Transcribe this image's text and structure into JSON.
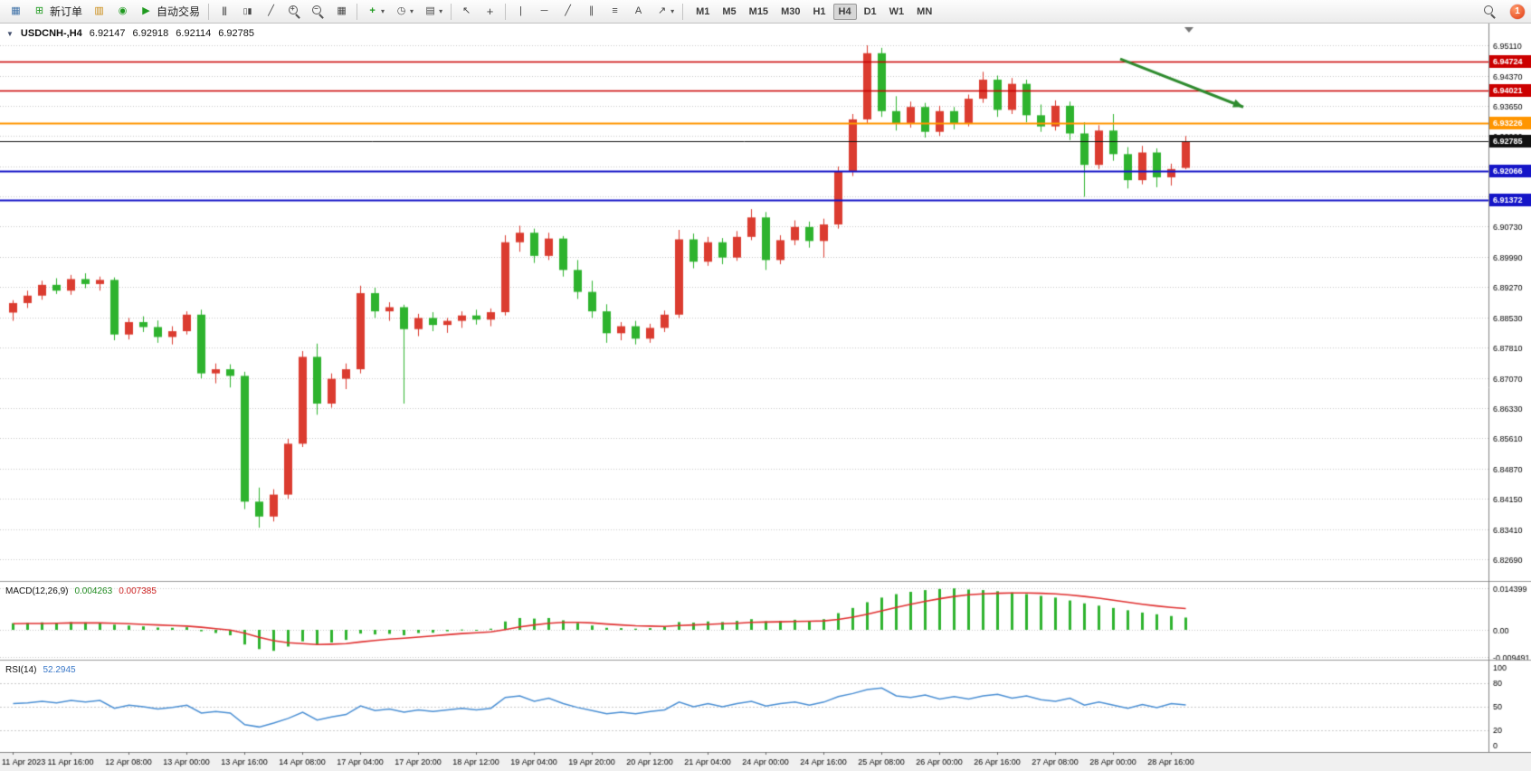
{
  "toolbar": {
    "new_order_label": "新订单",
    "auto_trading_label": "自动交易",
    "timeframes": [
      "M1",
      "M5",
      "M15",
      "M30",
      "H1",
      "H4",
      "D1",
      "W1",
      "MN"
    ],
    "active_timeframe": "H4",
    "notification_count": "1",
    "icon_names": [
      "new-chart",
      "new-order",
      "market-watch",
      "community",
      "auto-trading-play",
      "bar-chart-type",
      "candlestick-chart-type",
      "line-chart-type",
      "zoom-in",
      "zoom-out",
      "tile-windows",
      "indicators",
      "periods-clock",
      "templates",
      "cursor",
      "crosshair",
      "vertical-line",
      "horizontal-line",
      "trendline",
      "equidistant-channel",
      "fibonacci",
      "text",
      "arrows",
      "search",
      "notification-badge"
    ]
  },
  "chart": {
    "symbol": "USDCNH-,H4",
    "open": "6.92147",
    "high": "6.92918",
    "low": "6.92114",
    "close": "6.92785",
    "hlines": [
      {
        "price": 6.94724,
        "label": "6.94724",
        "color": "#cc0000",
        "width": 1.6
      },
      {
        "price": 6.94021,
        "label": "6.94021",
        "color": "#cc0000",
        "width": 1.6
      },
      {
        "price": 6.93226,
        "label": "6.93226",
        "color": "#ff9500",
        "width": 2
      },
      {
        "price": 6.92785,
        "label": "6.92785",
        "color": "#111111",
        "width": 1
      },
      {
        "price": 6.92066,
        "label": "6.92066",
        "color": "#1515c8",
        "width": 1.8
      },
      {
        "price": 6.91372,
        "label": "6.91372",
        "color": "#1515c8",
        "width": 1.8
      }
    ],
    "arrow": {
      "from_index": 76.5,
      "from_price": 6.9478,
      "to_index": 85,
      "to_price": 6.9362,
      "color": "#2e8b2e"
    }
  },
  "chart_data": [
    {
      "type": "candlestick",
      "symbol": "USDCNH-",
      "timeframe": "H4",
      "label_every_n_candles": 4,
      "ylim": [
        6.8225,
        6.9555
      ],
      "price_axis_ticks": [
        "6.95110",
        "6.94370",
        "6.93650",
        "6.92920",
        "6.92190",
        "6.91460",
        "6.90730",
        "6.89990",
        "6.89270",
        "6.88530",
        "6.87810",
        "6.87070",
        "6.86330",
        "6.85610",
        "6.84870",
        "6.84150",
        "6.83410",
        "6.82690"
      ],
      "x_labels": [
        "11 Apr 2023",
        "11 Apr 16:00",
        "12 Apr 08:00",
        "13 Apr 00:00",
        "13 Apr 16:00",
        "14 Apr 08:00",
        "17 Apr 04:00",
        "17 Apr 20:00",
        "18 Apr 12:00",
        "19 Apr 04:00",
        "19 Apr 20:00",
        "20 Apr 12:00",
        "21 Apr 04:00",
        "24 Apr 00:00",
        "24 Apr 16:00",
        "25 Apr 08:00",
        "26 Apr 00:00",
        "26 Apr 16:00",
        "27 Apr 08:00",
        "28 Apr 00:00",
        "28 Apr 16:00"
      ],
      "candles": [
        [
          6.8865,
          6.8895,
          6.8845,
          6.8888
        ],
        [
          6.8888,
          6.8918,
          6.8876,
          6.8906
        ],
        [
          6.8906,
          6.8942,
          6.8896,
          6.8932
        ],
        [
          6.8932,
          6.8948,
          6.891,
          6.8918
        ],
        [
          6.8918,
          6.8956,
          6.8908,
          6.8946
        ],
        [
          6.8946,
          6.896,
          6.8924,
          6.8934
        ],
        [
          6.8934,
          6.8952,
          6.8918,
          6.8944
        ],
        [
          6.8944,
          6.895,
          6.8798,
          6.8812
        ],
        [
          6.8812,
          6.8852,
          6.88,
          6.8842
        ],
        [
          6.8842,
          6.8856,
          6.8818,
          6.883
        ],
        [
          6.883,
          6.8846,
          6.8792,
          6.8806
        ],
        [
          6.8806,
          6.8832,
          6.8788,
          6.882
        ],
        [
          6.882,
          6.8868,
          6.8812,
          6.886
        ],
        [
          6.886,
          6.8872,
          6.8706,
          6.8718
        ],
        [
          6.8718,
          6.8742,
          6.8694,
          6.8728
        ],
        [
          6.8728,
          6.874,
          6.8684,
          6.8712
        ],
        [
          6.8712,
          6.8722,
          6.839,
          6.8408
        ],
        [
          6.8408,
          6.8442,
          6.8345,
          6.8372
        ],
        [
          6.8372,
          6.8438,
          6.836,
          6.8425
        ],
        [
          6.8425,
          6.856,
          6.8415,
          6.8548
        ],
        [
          6.8548,
          6.8772,
          6.854,
          6.8758
        ],
        [
          6.8758,
          6.879,
          6.8618,
          6.8645
        ],
        [
          6.8645,
          6.8718,
          6.8635,
          6.8705
        ],
        [
          6.8705,
          6.8742,
          6.868,
          6.8728
        ],
        [
          6.8728,
          6.893,
          6.8718,
          6.8912
        ],
        [
          6.8912,
          6.8925,
          6.8852,
          6.8868
        ],
        [
          6.8868,
          6.889,
          6.8845,
          6.8878
        ],
        [
          6.8878,
          6.8884,
          6.8645,
          6.8825
        ],
        [
          6.8825,
          6.8862,
          6.8808,
          6.8852
        ],
        [
          6.8852,
          6.8866,
          6.882,
          6.8835
        ],
        [
          6.8835,
          6.8852,
          6.8816,
          6.8845
        ],
        [
          6.8845,
          6.8868,
          6.8828,
          6.8858
        ],
        [
          6.8858,
          6.8872,
          6.8836,
          6.8848
        ],
        [
          6.8848,
          6.8875,
          6.8832,
          6.8866
        ],
        [
          6.8866,
          6.9052,
          6.8858,
          6.9035
        ],
        [
          6.9035,
          6.9075,
          6.9012,
          6.9058
        ],
        [
          6.9058,
          6.9068,
          6.8985,
          6.9002
        ],
        [
          6.9002,
          6.9058,
          6.8992,
          6.9044
        ],
        [
          6.9044,
          6.905,
          6.8952,
          6.8968
        ],
        [
          6.8968,
          6.8992,
          6.8898,
          6.8915
        ],
        [
          6.8915,
          6.8942,
          6.8852,
          6.8868
        ],
        [
          6.8868,
          6.8885,
          6.8792,
          6.8815
        ],
        [
          6.8815,
          6.8842,
          6.8798,
          6.8832
        ],
        [
          6.8832,
          6.8845,
          6.8788,
          6.8802
        ],
        [
          6.8802,
          6.8838,
          6.8792,
          6.8828
        ],
        [
          6.8828,
          6.887,
          6.8818,
          6.886
        ],
        [
          6.886,
          6.9065,
          6.8852,
          6.9042
        ],
        [
          6.9042,
          6.9056,
          6.8972,
          6.8988
        ],
        [
          6.8988,
          6.9048,
          6.8978,
          6.9035
        ],
        [
          6.9035,
          6.9045,
          6.8982,
          6.8998
        ],
        [
          6.8998,
          6.9062,
          6.899,
          6.9048
        ],
        [
          6.9048,
          6.9115,
          6.904,
          6.9095
        ],
        [
          6.9095,
          6.9108,
          6.8968,
          6.8992
        ],
        [
          6.8992,
          6.9052,
          6.8982,
          6.904
        ],
        [
          6.904,
          6.9088,
          6.9028,
          6.9072
        ],
        [
          6.9072,
          6.9085,
          6.9022,
          6.9038
        ],
        [
          6.9038,
          6.9092,
          6.8998,
          6.9078
        ],
        [
          6.9078,
          6.9218,
          6.9068,
          6.9205
        ],
        [
          6.9205,
          6.9345,
          6.9195,
          6.9332
        ],
        [
          6.9332,
          6.9511,
          6.9322,
          6.9492
        ],
        [
          6.9492,
          6.9505,
          6.9338,
          6.9352
        ],
        [
          6.9352,
          6.9388,
          6.9305,
          6.9322
        ],
        [
          6.9322,
          6.9375,
          6.9312,
          6.9362
        ],
        [
          6.9362,
          6.9372,
          6.9288,
          6.9302
        ],
        [
          6.9302,
          6.9365,
          6.9292,
          6.9352
        ],
        [
          6.9352,
          6.9362,
          6.9308,
          6.9322
        ],
        [
          6.9322,
          6.9392,
          6.9315,
          6.9382
        ],
        [
          6.9382,
          6.9447,
          6.9372,
          6.9428
        ],
        [
          6.9428,
          6.9438,
          6.9338,
          6.9355
        ],
        [
          6.9355,
          6.9432,
          6.9345,
          6.9418
        ],
        [
          6.9418,
          6.9428,
          6.9325,
          6.9342
        ],
        [
          6.9342,
          6.9368,
          6.9302,
          6.9315
        ],
        [
          6.9315,
          6.9378,
          6.9305,
          6.9365
        ],
        [
          6.9365,
          6.9375,
          6.9282,
          6.9298
        ],
        [
          6.9298,
          6.9325,
          6.9145,
          6.9222
        ],
        [
          6.9222,
          6.9318,
          6.9212,
          6.9305
        ],
        [
          6.9305,
          6.9345,
          6.9232,
          6.9248
        ],
        [
          6.9248,
          6.9265,
          6.9165,
          6.9185
        ],
        [
          6.9185,
          6.9268,
          6.9175,
          6.9252
        ],
        [
          6.9252,
          6.9262,
          6.9168,
          6.9192
        ],
        [
          6.9192,
          6.9225,
          6.9172,
          6.9212
        ],
        [
          6.92147,
          6.92918,
          6.92114,
          6.92785
        ]
      ]
    },
    {
      "type": "bar",
      "name": "MACD(12,26,9)",
      "current_macd": "0.004263",
      "current_signal": "0.007385",
      "axis_labels": [
        "0.014399",
        "0.00",
        "-0.009491"
      ],
      "ylim": [
        -0.009491,
        0.014399
      ],
      "values": [
        0.0023,
        0.0024,
        0.0026,
        0.0025,
        0.0027,
        0.0026,
        0.0025,
        0.0018,
        0.0015,
        0.0012,
        0.0008,
        0.0007,
        0.0009,
        -0.0005,
        -0.0011,
        -0.0019,
        -0.0051,
        -0.0067,
        -0.0073,
        -0.0058,
        -0.004,
        -0.0052,
        -0.0044,
        -0.0035,
        -0.0013,
        -0.0016,
        -0.0014,
        -0.0019,
        -0.0011,
        -0.001,
        -0.0005,
        0.0001,
        0.0,
        0.0004,
        0.0029,
        0.0041,
        0.0039,
        0.0041,
        0.0033,
        0.0024,
        0.0015,
        0.0007,
        0.0006,
        0.0004,
        0.0006,
        0.001,
        0.0027,
        0.0025,
        0.0029,
        0.0027,
        0.0031,
        0.0037,
        0.003,
        0.0031,
        0.0035,
        0.0031,
        0.0037,
        0.0058,
        0.0076,
        0.0096,
        0.0112,
        0.0124,
        0.0132,
        0.0138,
        0.0142,
        0.0144,
        0.014,
        0.0138,
        0.0134,
        0.013,
        0.0124,
        0.0118,
        0.0112,
        0.0102,
        0.0092,
        0.0084,
        0.0076,
        0.0068,
        0.006,
        0.0054,
        0.0048,
        0.004263
      ],
      "signal_line": [
        0.0021,
        0.0022,
        0.0022,
        0.0023,
        0.0024,
        0.0024,
        0.0024,
        0.0023,
        0.0021,
        0.0019,
        0.0017,
        0.0015,
        0.0013,
        0.0009,
        0.0004,
        -0.0001,
        -0.0012,
        -0.0026,
        -0.0038,
        -0.0045,
        -0.0048,
        -0.0051,
        -0.005,
        -0.0048,
        -0.0042,
        -0.0037,
        -0.0032,
        -0.0029,
        -0.0025,
        -0.0021,
        -0.0017,
        -0.0013,
        -0.001,
        -0.0007,
        0.0001,
        0.001,
        0.0017,
        0.0023,
        0.0026,
        0.0026,
        0.0024,
        0.002,
        0.0017,
        0.0014,
        0.0013,
        0.0012,
        0.0015,
        0.0017,
        0.0019,
        0.0021,
        0.0023,
        0.0026,
        0.0027,
        0.0028,
        0.0029,
        0.003,
        0.0031,
        0.0036,
        0.0044,
        0.0054,
        0.0066,
        0.0078,
        0.0089,
        0.0099,
        0.0108,
        0.0116,
        0.0122,
        0.0125,
        0.0127,
        0.0128,
        0.0128,
        0.0127,
        0.0125,
        0.0121,
        0.0116,
        0.011,
        0.0103,
        0.0096,
        0.0089,
        0.0083,
        0.0078,
        0.007385
      ]
    },
    {
      "type": "line",
      "name": "RSI(14)",
      "current": "52.2945",
      "axis_labels": [
        "100",
        "80",
        "50",
        "20",
        "0"
      ],
      "levels": [
        80,
        50,
        20
      ],
      "ylim": [
        0,
        100
      ],
      "values": [
        54,
        55,
        57,
        55,
        58,
        56,
        58,
        48,
        52,
        50,
        47,
        49,
        52,
        42,
        44,
        42,
        27,
        24,
        29,
        35,
        43,
        33,
        37,
        40,
        51,
        45,
        47,
        43,
        46,
        44,
        46,
        48,
        46,
        48,
        62,
        64,
        57,
        61,
        54,
        49,
        45,
        41,
        43,
        41,
        44,
        46,
        56,
        50,
        54,
        50,
        54,
        57,
        51,
        54,
        56,
        52,
        56,
        63,
        67,
        72,
        74,
        64,
        62,
        65,
        60,
        63,
        60,
        64,
        66,
        61,
        64,
        59,
        57,
        61,
        52,
        56,
        52,
        48,
        53,
        49,
        54,
        52.2945
      ]
    }
  ],
  "colors": {
    "up_candle": "#db3c30",
    "down_candle": "#2eb32e",
    "macd_hist": "#2eb32e",
    "macd_signal": "#e03030",
    "rsi_line": "#4a8fd4",
    "grid": "#c9c9c9",
    "axis_text": "#000000",
    "time_axis_bg": "#f0f0f0"
  }
}
